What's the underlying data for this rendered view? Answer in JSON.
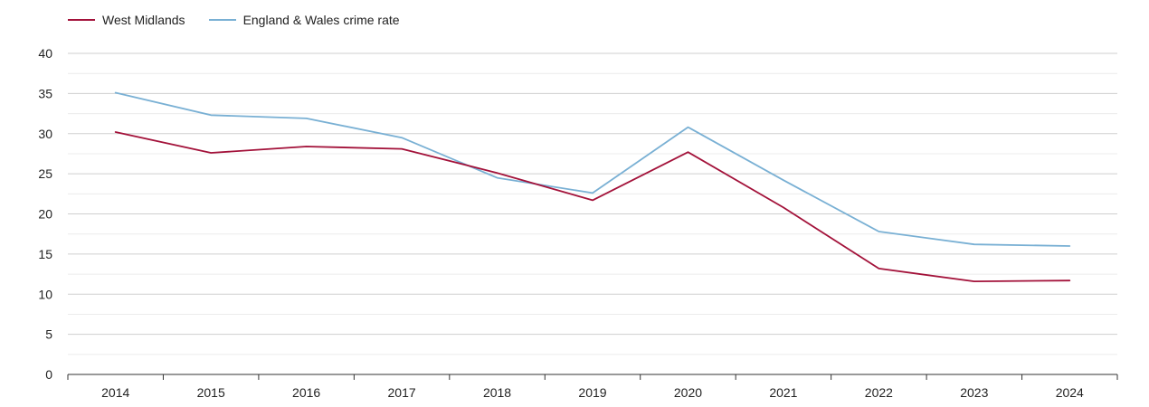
{
  "chart_data": {
    "type": "line",
    "title": "",
    "xlabel": "",
    "ylabel": "",
    "categories": [
      "2014",
      "2015",
      "2016",
      "2017",
      "2018",
      "2019",
      "2020",
      "2021",
      "2022",
      "2023",
      "2024"
    ],
    "ylim": [
      0,
      40
    ],
    "yticks": [
      0,
      5,
      10,
      15,
      20,
      25,
      30,
      35,
      40
    ],
    "grid": true,
    "legend_position": "top-left",
    "series": [
      {
        "name": "West Midlands",
        "color": "#a3123a",
        "values": [
          30.2,
          27.6,
          28.4,
          28.1,
          25.1,
          21.7,
          27.7,
          20.8,
          13.2,
          11.6,
          11.7
        ]
      },
      {
        "name": "England & Wales crime rate",
        "color": "#79b0d4",
        "values": [
          35.1,
          32.3,
          31.9,
          29.5,
          24.5,
          22.6,
          30.8,
          24.2,
          17.8,
          16.2,
          16.0
        ]
      }
    ]
  }
}
